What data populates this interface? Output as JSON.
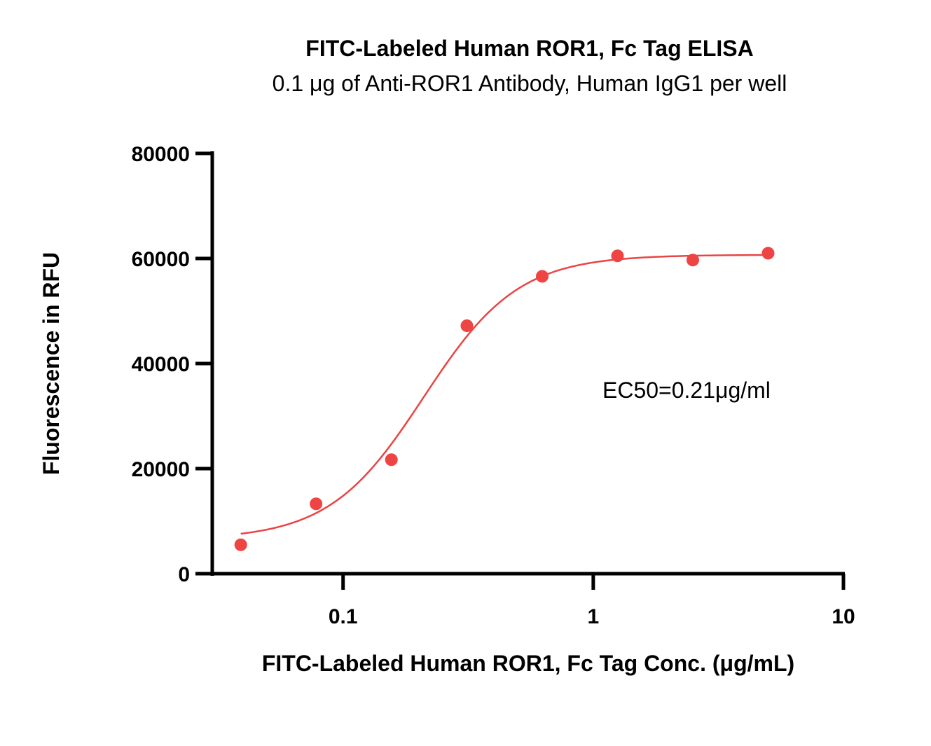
{
  "chart_data": {
    "type": "scatter",
    "title": "FITC-Labeled Human ROR1, Fc Tag ELISA",
    "subtitle": "0.1 μg of Anti-ROR1 Antibody, Human IgG1 per well",
    "xlabel": "FITC-Labeled Human ROR1, Fc Tag Conc. (μg/mL)",
    "ylabel": "Fluorescence in RFU",
    "x_scale": "log",
    "xlim": [
      0.03,
      10
    ],
    "ylim": [
      0,
      80000
    ],
    "x_ticks": [
      {
        "value": 0.1,
        "label": "0.1"
      },
      {
        "value": 1,
        "label": "1"
      },
      {
        "value": 10,
        "label": "10"
      }
    ],
    "y_ticks": [
      {
        "value": 0,
        "label": "0"
      },
      {
        "value": 20000,
        "label": "20000"
      },
      {
        "value": 40000,
        "label": "40000"
      },
      {
        "value": 60000,
        "label": "60000"
      },
      {
        "value": 80000,
        "label": "80000"
      }
    ],
    "series": [
      {
        "color": "#ee4444",
        "x": [
          0.039,
          0.078,
          0.156,
          0.3125,
          0.625,
          1.25,
          2.5,
          5
        ],
        "y": [
          5500,
          13300,
          21700,
          47200,
          56600,
          60500,
          59700,
          61000
        ]
      }
    ],
    "fit": {
      "model": "4PL",
      "bottom": 6500,
      "top": 60700,
      "ec50": 0.21,
      "hill": 2.3,
      "color": "#e84545"
    },
    "annotation": "EC50=0.21μg/ml",
    "grid": false,
    "legend": "none"
  }
}
